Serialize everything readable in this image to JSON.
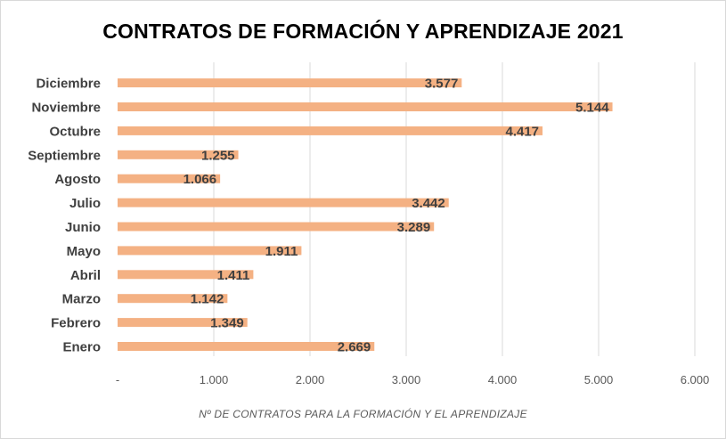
{
  "chart_data": {
    "type": "bar",
    "orientation": "horizontal",
    "title": "CONTRATOS DE FORMACIÓN Y APRENDIZAJE 2021",
    "xlabel": "Nº DE CONTRATOS PARA LA FORMACIÓN Y EL APRENDIZAJE",
    "ylabel": "",
    "categories": [
      "Enero",
      "Febrero",
      "Marzo",
      "Abril",
      "Mayo",
      "Junio",
      "Julio",
      "Agosto",
      "Septiembre",
      "Octubre",
      "Noviembre",
      "Diciembre"
    ],
    "values": [
      2669,
      1349,
      1142,
      1411,
      1911,
      3289,
      3442,
      1066,
      1255,
      4417,
      5144,
      3577
    ],
    "data_labels": [
      "2.669",
      "1.349",
      "1.142",
      "1.411",
      "1.911",
      "3.289",
      "3.442",
      "1.066",
      "1.255",
      "4.417",
      "5.144",
      "3.577"
    ],
    "xlim": [
      0,
      6000
    ],
    "x_ticks": [
      0,
      1000,
      2000,
      3000,
      4000,
      5000,
      6000
    ],
    "x_tick_labels": [
      "-",
      "1.000",
      "2.000",
      "3.000",
      "4.000",
      "5.000",
      "6.000"
    ],
    "grid": "vertical",
    "legend": "none",
    "colors": {
      "bar": "#f4b183",
      "grid": "#d9d9d9",
      "text": "#404040"
    }
  }
}
